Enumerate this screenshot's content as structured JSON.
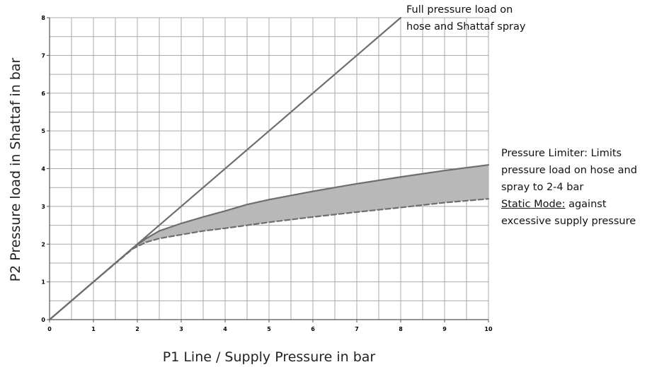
{
  "chart_data": {
    "type": "line",
    "xlabel": "P1 Line / Supply Pressure in bar",
    "ylabel": "P2 Pressure load in Shattaf in bar",
    "xlim": [
      0,
      10
    ],
    "ylim": [
      0,
      8
    ],
    "xticks": [
      "0",
      "1",
      "2",
      "3",
      "4",
      "5",
      "6",
      "7",
      "8",
      "9",
      "10"
    ],
    "yticks": [
      "0",
      "1",
      "2",
      "3",
      "4",
      "5",
      "6",
      "7",
      "8"
    ],
    "grid": true,
    "minor_grid_step": 0.5,
    "series": [
      {
        "style": "solid",
        "x": [
          0,
          8
        ],
        "y": [
          0,
          8
        ]
      },
      {
        "style": "solid",
        "x": [
          0,
          1,
          1.9,
          2.2,
          2.5,
          3,
          3.5,
          4,
          4.5,
          5,
          6,
          7,
          8,
          9,
          10
        ],
        "y": [
          0,
          1,
          1.9,
          2.15,
          2.35,
          2.55,
          2.72,
          2.88,
          3.05,
          3.18,
          3.4,
          3.6,
          3.78,
          3.95,
          4.1
        ]
      },
      {
        "style": "dashed",
        "x": [
          0,
          1,
          1.9,
          2.2,
          2.5,
          3,
          3.5,
          4,
          4.5,
          5,
          6,
          7,
          8,
          9,
          10
        ],
        "y": [
          0,
          1,
          1.88,
          2.05,
          2.15,
          2.25,
          2.35,
          2.42,
          2.5,
          2.58,
          2.72,
          2.85,
          2.97,
          3.1,
          3.2
        ]
      }
    ],
    "colors": {
      "line": "#6e6e6e",
      "fill": "#b8b8b8",
      "grid": "#aaaaaa"
    },
    "annotations": [
      {
        "lines": [
          "Full pressure load on",
          "hose and Shattaf spray"
        ]
      },
      {
        "lines": [
          "Pressure Limiter: Limits",
          "pressure load on hose and",
          "spray to 2-4 bar"
        ],
        "underlined": "Static Mode:",
        "rest": " against",
        "after": "excessive supply pressure"
      }
    ]
  }
}
